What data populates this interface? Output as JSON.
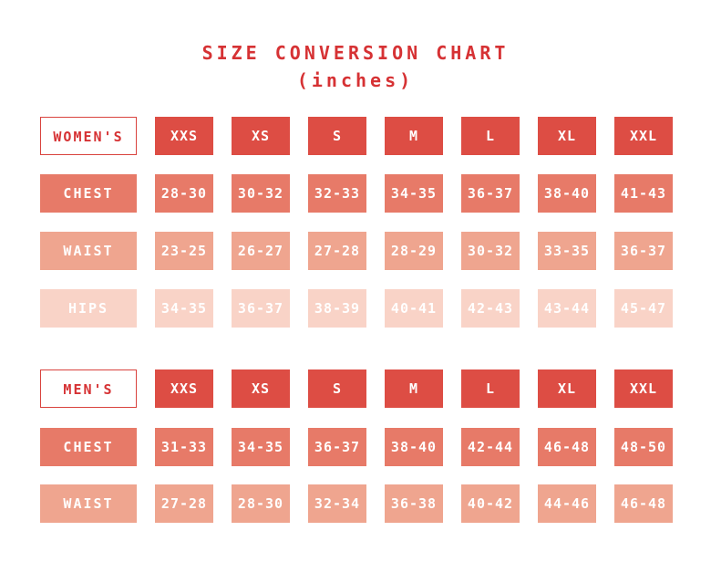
{
  "title": "SIZE CONVERSION CHART",
  "subtitle": "(inches)",
  "sizes": [
    "XXS",
    "XS",
    "S",
    "M",
    "L",
    "XL",
    "XXL"
  ],
  "womens": {
    "label": "WOMEN'S",
    "rows": [
      {
        "label": "CHEST",
        "values": [
          "28-30",
          "30-32",
          "32-33",
          "34-35",
          "36-37",
          "38-40",
          "41-43"
        ]
      },
      {
        "label": "WAIST",
        "values": [
          "23-25",
          "26-27",
          "27-28",
          "28-29",
          "30-32",
          "33-35",
          "36-37"
        ]
      },
      {
        "label": "HIPS",
        "values": [
          "34-35",
          "36-37",
          "38-39",
          "40-41",
          "42-43",
          "43-44",
          "45-47"
        ]
      }
    ]
  },
  "mens": {
    "label": "MEN'S",
    "rows": [
      {
        "label": "CHEST",
        "values": [
          "31-33",
          "34-35",
          "36-37",
          "38-40",
          "42-44",
          "46-48",
          "48-50"
        ]
      },
      {
        "label": "WAIST",
        "values": [
          "27-28",
          "28-30",
          "32-34",
          "36-38",
          "40-42",
          "44-46",
          "46-48"
        ]
      }
    ]
  }
}
